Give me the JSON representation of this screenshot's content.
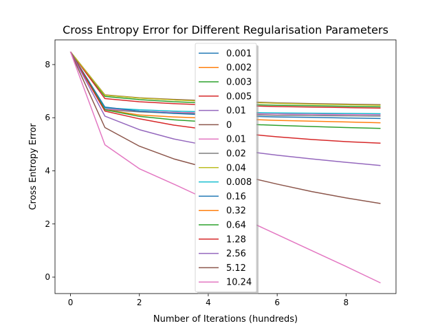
{
  "chart_data": {
    "type": "line",
    "title": "Cross Entropy Error for Different Regularisation Parameters",
    "xlabel": "Number of Iterations (hundreds)",
    "ylabel": "Cross Entropy Error",
    "xlim": [
      -0.45,
      9.45
    ],
    "ylim": [
      -0.62,
      8.93
    ],
    "xticks": [
      0,
      2,
      4,
      6,
      8
    ],
    "yticks": [
      0,
      2,
      4,
      6,
      8
    ],
    "grid": false,
    "legend_position": "upper-center",
    "x": [
      0,
      1,
      2,
      3,
      4,
      5,
      6,
      7,
      8,
      9
    ],
    "series": [
      {
        "name": "0.001",
        "color": "#1f77b4",
        "values": [
          8.48,
          6.35,
          6.24,
          6.2,
          6.17,
          6.15,
          6.14,
          6.13,
          6.12,
          6.11
        ]
      },
      {
        "name": "0.002",
        "color": "#ff7f0e",
        "values": [
          8.48,
          6.85,
          6.74,
          6.67,
          6.62,
          6.58,
          6.55,
          6.52,
          6.5,
          6.48
        ]
      },
      {
        "name": "0.003",
        "color": "#2ca02c",
        "values": [
          8.48,
          6.8,
          6.68,
          6.6,
          6.55,
          6.5,
          6.47,
          6.45,
          6.43,
          6.41
        ]
      },
      {
        "name": "0.005",
        "color": "#d62728",
        "values": [
          8.48,
          6.72,
          6.6,
          6.53,
          6.48,
          6.45,
          6.42,
          6.4,
          6.38,
          6.36
        ]
      },
      {
        "name": "0.01",
        "color": "#9467bd",
        "values": [
          8.48,
          6.34,
          6.25,
          6.2,
          6.17,
          6.15,
          6.14,
          6.13,
          6.12,
          6.12
        ]
      },
      {
        "name": "0",
        "color": "#8c564b",
        "values": [
          8.48,
          6.86,
          6.75,
          6.69,
          6.64,
          6.6,
          6.56,
          6.53,
          6.51,
          6.49
        ]
      },
      {
        "name": "0.01",
        "color": "#e377c2",
        "values": [
          8.48,
          6.34,
          6.25,
          6.2,
          6.17,
          6.15,
          6.14,
          6.13,
          6.12,
          6.12
        ]
      },
      {
        "name": "0.02",
        "color": "#7f7f7f",
        "values": [
          8.48,
          6.3,
          6.22,
          6.17,
          6.14,
          6.11,
          6.09,
          6.08,
          6.07,
          6.06
        ]
      },
      {
        "name": "0.04",
        "color": "#bcbd22",
        "values": [
          8.48,
          6.85,
          6.74,
          6.67,
          6.62,
          6.58,
          6.54,
          6.51,
          6.49,
          6.47
        ]
      },
      {
        "name": "0.008",
        "color": "#17becf",
        "values": [
          8.48,
          6.37,
          6.3,
          6.25,
          6.22,
          6.2,
          6.18,
          6.17,
          6.16,
          6.15
        ]
      },
      {
        "name": "0.16",
        "color": "#1f77b4",
        "values": [
          8.48,
          6.4,
          6.25,
          6.16,
          6.1,
          6.06,
          6.03,
          6.01,
          5.99,
          5.97
        ]
      },
      {
        "name": "0.32",
        "color": "#ff7f0e",
        "values": [
          8.48,
          6.3,
          6.1,
          6.03,
          5.98,
          5.94,
          5.9,
          5.87,
          5.84,
          5.81
        ]
      },
      {
        "name": "0.64",
        "color": "#2ca02c",
        "values": [
          8.48,
          6.3,
          6.05,
          5.92,
          5.84,
          5.76,
          5.71,
          5.67,
          5.63,
          5.6
        ]
      },
      {
        "name": "1.28",
        "color": "#d62728",
        "values": [
          8.48,
          6.25,
          5.96,
          5.72,
          5.55,
          5.4,
          5.28,
          5.18,
          5.1,
          5.04
        ]
      },
      {
        "name": "2.56",
        "color": "#9467bd",
        "values": [
          8.48,
          6.06,
          5.55,
          5.2,
          4.95,
          4.75,
          4.59,
          4.45,
          4.32,
          4.2
        ]
      },
      {
        "name": "5.12",
        "color": "#8c564b",
        "values": [
          8.48,
          5.63,
          4.93,
          4.45,
          4.1,
          3.8,
          3.5,
          3.22,
          2.98,
          2.77
        ]
      },
      {
        "name": "10.24",
        "color": "#e377c2",
        "values": [
          8.48,
          4.98,
          4.08,
          3.5,
          2.9,
          2.2,
          1.6,
          1.0,
          0.4,
          -0.22
        ]
      }
    ]
  }
}
